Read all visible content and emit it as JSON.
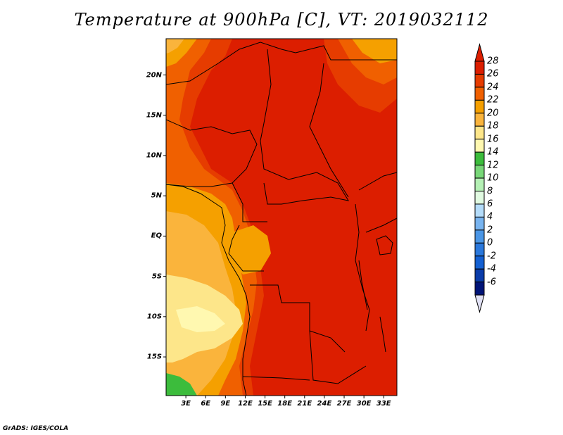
{
  "title": "Temperature at 900hPa [C], VT: 2019032112",
  "footer": "GrADS: IGES/COLA",
  "map": {
    "lat_labels": [
      "20N",
      "15N",
      "10N",
      "5N",
      "EQ",
      "5S",
      "10S",
      "15S"
    ],
    "lat_values": [
      20,
      15,
      10,
      5,
      0,
      -5,
      -10,
      -15
    ],
    "lon_labels": [
      "3E",
      "6E",
      "9E",
      "12E",
      "15E",
      "18E",
      "21E",
      "24E",
      "27E",
      "30E",
      "33E"
    ],
    "lon_values": [
      3,
      6,
      9,
      12,
      15,
      18,
      21,
      24,
      27,
      30,
      33
    ],
    "lat_range": [
      -19.8,
      24.5
    ],
    "lon_range": [
      0,
      35
    ],
    "variable": "Temperature",
    "level": "900hPa",
    "units": "C",
    "valid_time": "2019032112"
  },
  "colorbar": {
    "labels": [
      "28",
      "26",
      "24",
      "22",
      "20",
      "18",
      "16",
      "14",
      "12",
      "10",
      "8",
      "6",
      "4",
      "2",
      "0",
      "-2",
      "-4",
      "-6"
    ],
    "colors": [
      "#dc1e00",
      "#e63c00",
      "#f06000",
      "#f5a000",
      "#fab43c",
      "#fde68a",
      "#fff8b0",
      "#3cbc3c",
      "#78d778",
      "#b4f0b4",
      "#e1fae1",
      "#b4dcfa",
      "#78b4f0",
      "#4a96e6",
      "#2a78dc",
      "#1460d2",
      "#0a3caa",
      "#001478"
    ],
    "top_triangle_color": "#dc1e00",
    "bottom_triangle_color": "#e1e1f5"
  }
}
